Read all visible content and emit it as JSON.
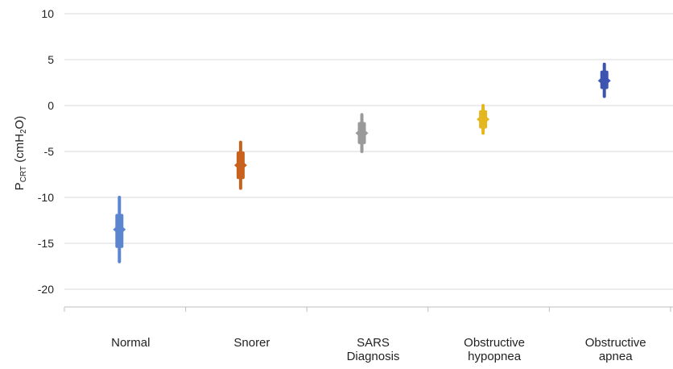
{
  "chart_data": {
    "type": "scatter",
    "ylabel": {
      "main": "P",
      "sub1": "CRT",
      "mid": " (cmH",
      "sub2": "2",
      "end": "O)"
    },
    "ylim": [
      -22,
      10
    ],
    "yticks": [
      "10",
      "5",
      "0",
      "-5",
      "-10",
      "-15",
      "-20"
    ],
    "grid": true,
    "categories": [
      [
        "Normal"
      ],
      [
        "Snorer"
      ],
      [
        "SARS",
        "Diagnosis"
      ],
      [
        "Obstructive",
        "hypopnea"
      ],
      [
        "Obstructive",
        "apnea"
      ]
    ],
    "series": [
      {
        "color": "#5b86cf",
        "range": [
          -17,
          -10
        ],
        "iqr": [
          -15.5,
          -11.8
        ],
        "median": -13.5
      },
      {
        "color": "#c8621e",
        "range": [
          -9,
          -4
        ],
        "iqr": [
          -8,
          -5
        ],
        "median": -6.5
      },
      {
        "color": "#9a9a9a",
        "range": [
          -5,
          -1
        ],
        "iqr": [
          -4.2,
          -1.8
        ],
        "median": -3
      },
      {
        "color": "#e4b71f",
        "range": [
          -3,
          0
        ],
        "iqr": [
          -2.5,
          -0.5
        ],
        "median": -1.5
      },
      {
        "color": "#3d55b0",
        "range": [
          1,
          4.5
        ],
        "iqr": [
          1.8,
          3.8
        ],
        "median": 2.7
      }
    ]
  }
}
